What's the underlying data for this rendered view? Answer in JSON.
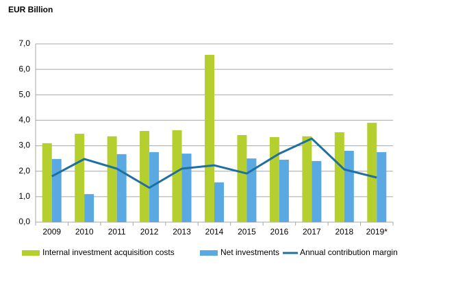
{
  "chart_data": {
    "type": "bar",
    "title": "EUR Billion",
    "categories": [
      "2009",
      "2010",
      "2011",
      "2012",
      "2013",
      "2014",
      "2015",
      "2016",
      "2017",
      "2018",
      "2019*"
    ],
    "series": [
      {
        "name": "Internal investment acquisition costs",
        "type": "bar",
        "color": "#b5cf2e",
        "values": [
          3.1,
          3.47,
          3.37,
          3.58,
          3.61,
          6.57,
          3.42,
          3.34,
          3.37,
          3.53,
          3.9
        ]
      },
      {
        "name": "Net investments",
        "type": "bar",
        "color": "#5ba9e3",
        "values": [
          2.48,
          1.1,
          2.67,
          2.75,
          2.69,
          1.56,
          2.5,
          2.45,
          2.4,
          2.8,
          2.75
        ]
      },
      {
        "name": "Annual contribution margin",
        "type": "line",
        "color": "#1f6fa0",
        "values": [
          1.8,
          2.48,
          2.1,
          1.35,
          2.1,
          2.23,
          1.91,
          2.69,
          3.28,
          2.07,
          1.75
        ]
      }
    ],
    "ylim": [
      0,
      7
    ],
    "yticks": [
      {
        "value": 0,
        "label": "0,0"
      },
      {
        "value": 1,
        "label": "1,0"
      },
      {
        "value": 2,
        "label": "2,0"
      },
      {
        "value": 3,
        "label": "3,0"
      },
      {
        "value": 4,
        "label": "4,0"
      },
      {
        "value": 5,
        "label": "5,0"
      },
      {
        "value": 6,
        "label": "6,0"
      },
      {
        "value": 7,
        "label": "7,0"
      }
    ],
    "grid": true,
    "legend": "bottom"
  }
}
